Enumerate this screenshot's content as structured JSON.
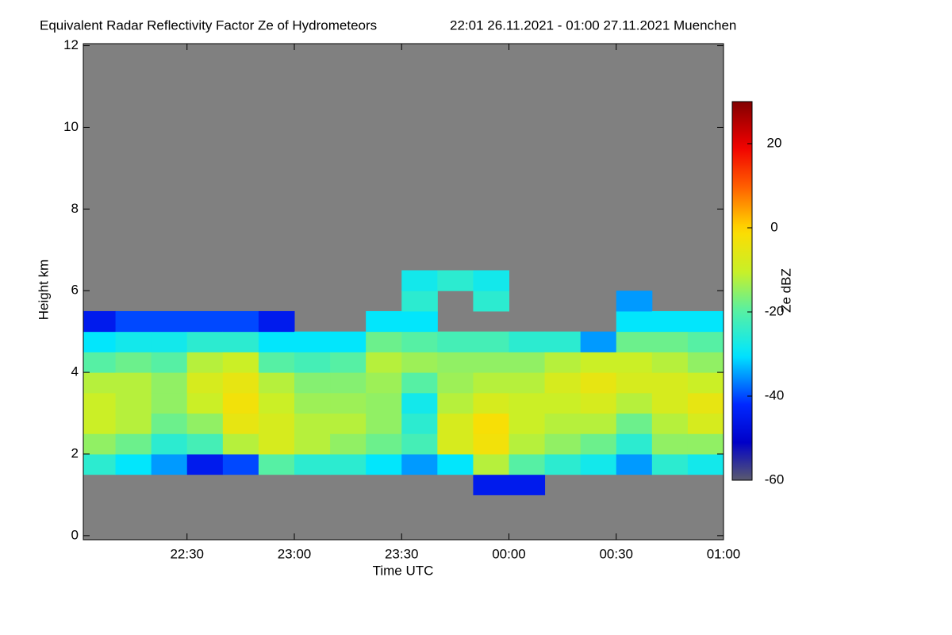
{
  "chart_data": {
    "type": "heatmap",
    "title": "Equivalent Radar Reflectivity Factor Ze of Hydrometeors",
    "subtitle": "22:01 26.11.2021 - 01:00 27.11.2021 Muenchen",
    "xlabel": "Time UTC",
    "ylabel": "Height km",
    "colorbar_label": "Ze dBZ",
    "xlim": [
      1,
      180
    ],
    "xticks": [
      {
        "value": 30,
        "label": "22:30"
      },
      {
        "value": 60,
        "label": "23:00"
      },
      {
        "value": 90,
        "label": "23:30"
      },
      {
        "value": 120,
        "label": "00:00"
      },
      {
        "value": 150,
        "label": "00:30"
      },
      {
        "value": 180,
        "label": "01:00"
      }
    ],
    "ylim": [
      -0.1,
      12.05
    ],
    "yticks": [
      0,
      2,
      4,
      6,
      8,
      10,
      12
    ],
    "zlim": [
      -60,
      30
    ],
    "zticks": [
      -60,
      -40,
      -20,
      0,
      20
    ],
    "colormap": "jet",
    "nodata_color": "#808080",
    "x_edges": [
      1,
      10,
      20,
      30,
      40,
      50,
      60,
      70,
      80,
      90,
      100,
      110,
      120,
      130,
      140,
      150,
      160,
      170,
      180
    ],
    "y_edges": [
      1,
      1.5,
      2,
      2.5,
      3,
      3.5,
      4,
      4.5,
      5,
      5.5,
      6,
      6.5
    ],
    "z": [
      [
        null,
        -25,
        -15,
        -10,
        -10,
        -12,
        -20,
        -30,
        -45,
        null,
        null
      ],
      [
        null,
        -30,
        -18,
        -12,
        -12,
        -12,
        -18,
        -28,
        -40,
        null,
        null
      ],
      [
        null,
        -35,
        -25,
        -18,
        -15,
        -15,
        -20,
        -28,
        -40,
        null,
        null
      ],
      [
        null,
        -45,
        -22,
        -15,
        -10,
        -8,
        -12,
        -25,
        -40,
        null,
        null
      ],
      [
        null,
        -40,
        -12,
        -5,
        -3,
        -5,
        -10,
        -25,
        -40,
        null,
        null
      ],
      [
        null,
        -20,
        -8,
        -8,
        -10,
        -12,
        -20,
        -30,
        -45,
        null,
        null
      ],
      [
        null,
        -25,
        -12,
        -12,
        -14,
        -16,
        -22,
        -30,
        null,
        null,
        null
      ],
      [
        null,
        -25,
        -15,
        -12,
        -14,
        -16,
        -20,
        -30,
        null,
        null,
        null
      ],
      [
        null,
        -30,
        -18,
        -15,
        -15,
        -14,
        -12,
        -18,
        -30,
        null,
        null
      ],
      [
        null,
        -35,
        -22,
        -25,
        -28,
        -20,
        -14,
        -20,
        -30,
        -25,
        -28
      ],
      [
        null,
        -30,
        -8,
        -8,
        -12,
        -14,
        -15,
        -22,
        null,
        null,
        -25
      ],
      [
        -45,
        -12,
        -3,
        -2,
        -8,
        -12,
        -15,
        -22,
        null,
        -25,
        -28
      ],
      [
        -45,
        -20,
        -12,
        -10,
        -10,
        -12,
        -15,
        -25,
        null,
        null,
        null
      ],
      [
        null,
        -25,
        -15,
        -12,
        -10,
        -8,
        -12,
        -25,
        null,
        null,
        null
      ],
      [
        null,
        -28,
        -18,
        -12,
        -8,
        -5,
        -10,
        -35,
        null,
        null,
        null
      ],
      [
        null,
        -35,
        -25,
        -18,
        -12,
        -8,
        -10,
        -18,
        -30,
        -35,
        null
      ],
      [
        null,
        -25,
        -15,
        -12,
        -8,
        -8,
        -12,
        -18,
        -30,
        null,
        null
      ],
      [
        null,
        -28,
        -15,
        -8,
        -5,
        -10,
        -15,
        -20,
        -30,
        null,
        null
      ]
    ]
  }
}
